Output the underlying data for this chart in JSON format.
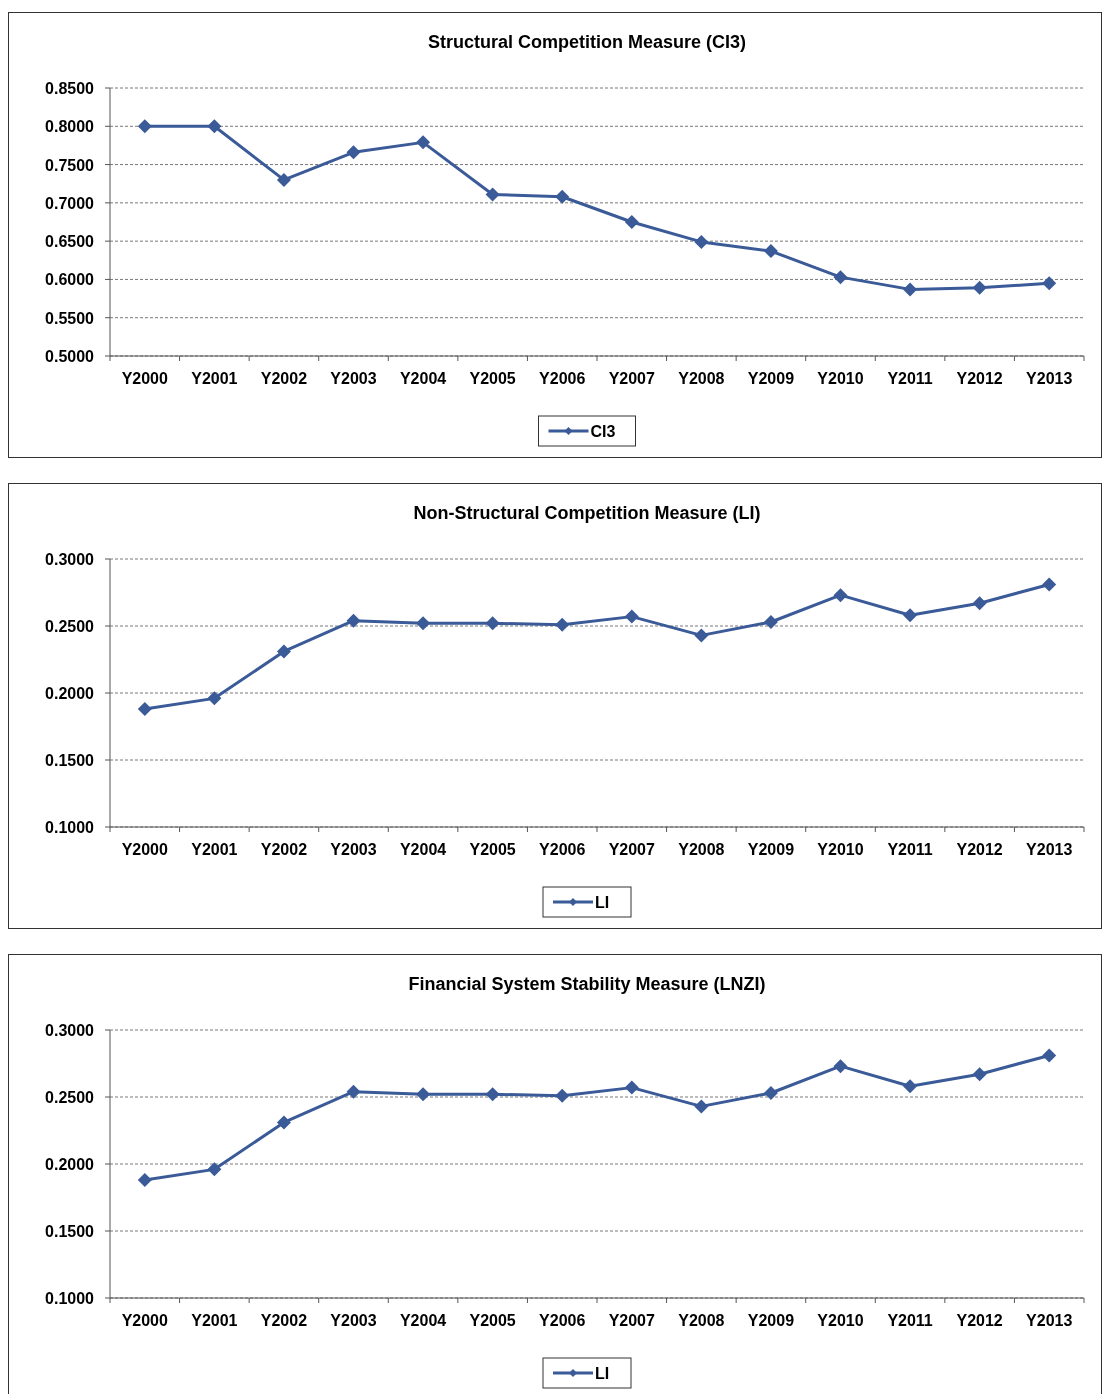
{
  "chart_data": [
    {
      "type": "line",
      "title": "Structural Competition Measure (CI3)",
      "categories": [
        "Y2000",
        "Y2001",
        "Y2002",
        "Y2003",
        "Y2004",
        "Y2005",
        "Y2006",
        "Y2007",
        "Y2008",
        "Y2009",
        "Y2010",
        "Y2011",
        "Y2012",
        "Y2013"
      ],
      "series": [
        {
          "name": "CI3",
          "color": "#3a5a98",
          "values": [
            0.8,
            0.8,
            0.73,
            0.766,
            0.779,
            0.711,
            0.708,
            0.675,
            0.649,
            0.637,
            0.603,
            0.587,
            0.589,
            0.595
          ]
        }
      ],
      "ylim": [
        0.5,
        0.85
      ],
      "yticks": [
        {
          "value": 0.5,
          "label": "0.5000"
        },
        {
          "value": 0.55,
          "label": "0.5500"
        },
        {
          "value": 0.6,
          "label": "0.6000"
        },
        {
          "value": 0.65,
          "label": "0.6500"
        },
        {
          "value": 0.7,
          "label": "0.7000"
        },
        {
          "value": 0.75,
          "label": "0.7500"
        },
        {
          "value": 0.8,
          "label": "0.8000"
        },
        {
          "value": 0.85,
          "label": "0.8500"
        }
      ],
      "grid": "y",
      "legend": "bottom",
      "marker": "diamond"
    },
    {
      "type": "line",
      "title": "Non-Structural Competition Measure (LI)",
      "categories": [
        "Y2000",
        "Y2001",
        "Y2002",
        "Y2003",
        "Y2004",
        "Y2005",
        "Y2006",
        "Y2007",
        "Y2008",
        "Y2009",
        "Y2010",
        "Y2011",
        "Y2012",
        "Y2013"
      ],
      "series": [
        {
          "name": "LI",
          "color": "#3a5a98",
          "values": [
            0.188,
            0.196,
            0.231,
            0.254,
            0.252,
            0.252,
            0.251,
            0.257,
            0.243,
            0.253,
            0.273,
            0.258,
            0.267,
            0.281
          ]
        }
      ],
      "ylim": [
        0.1,
        0.3
      ],
      "yticks": [
        {
          "value": 0.1,
          "label": "0.1000"
        },
        {
          "value": 0.15,
          "label": "0.1500"
        },
        {
          "value": 0.2,
          "label": "0.2000"
        },
        {
          "value": 0.25,
          "label": "0.2500"
        },
        {
          "value": 0.3,
          "label": "0.3000"
        }
      ],
      "grid": "y",
      "legend": "bottom",
      "marker": "diamond"
    },
    {
      "type": "line",
      "title": "Financial System Stability Measure (LNZI)",
      "categories": [
        "Y2000",
        "Y2001",
        "Y2002",
        "Y2003",
        "Y2004",
        "Y2005",
        "Y2006",
        "Y2007",
        "Y2008",
        "Y2009",
        "Y2010",
        "Y2011",
        "Y2012",
        "Y2013"
      ],
      "series": [
        {
          "name": "LI",
          "color": "#3a5a98",
          "values": [
            0.188,
            0.196,
            0.231,
            0.254,
            0.252,
            0.252,
            0.251,
            0.257,
            0.243,
            0.253,
            0.273,
            0.258,
            0.267,
            0.281
          ]
        }
      ],
      "ylim": [
        0.1,
        0.3
      ],
      "yticks": [
        {
          "value": 0.1,
          "label": "0.1000"
        },
        {
          "value": 0.15,
          "label": "0.1500"
        },
        {
          "value": 0.2,
          "label": "0.2000"
        },
        {
          "value": 0.25,
          "label": "0.2500"
        },
        {
          "value": 0.3,
          "label": "0.3000"
        }
      ],
      "grid": "y",
      "legend": "bottom",
      "marker": "diamond"
    }
  ]
}
